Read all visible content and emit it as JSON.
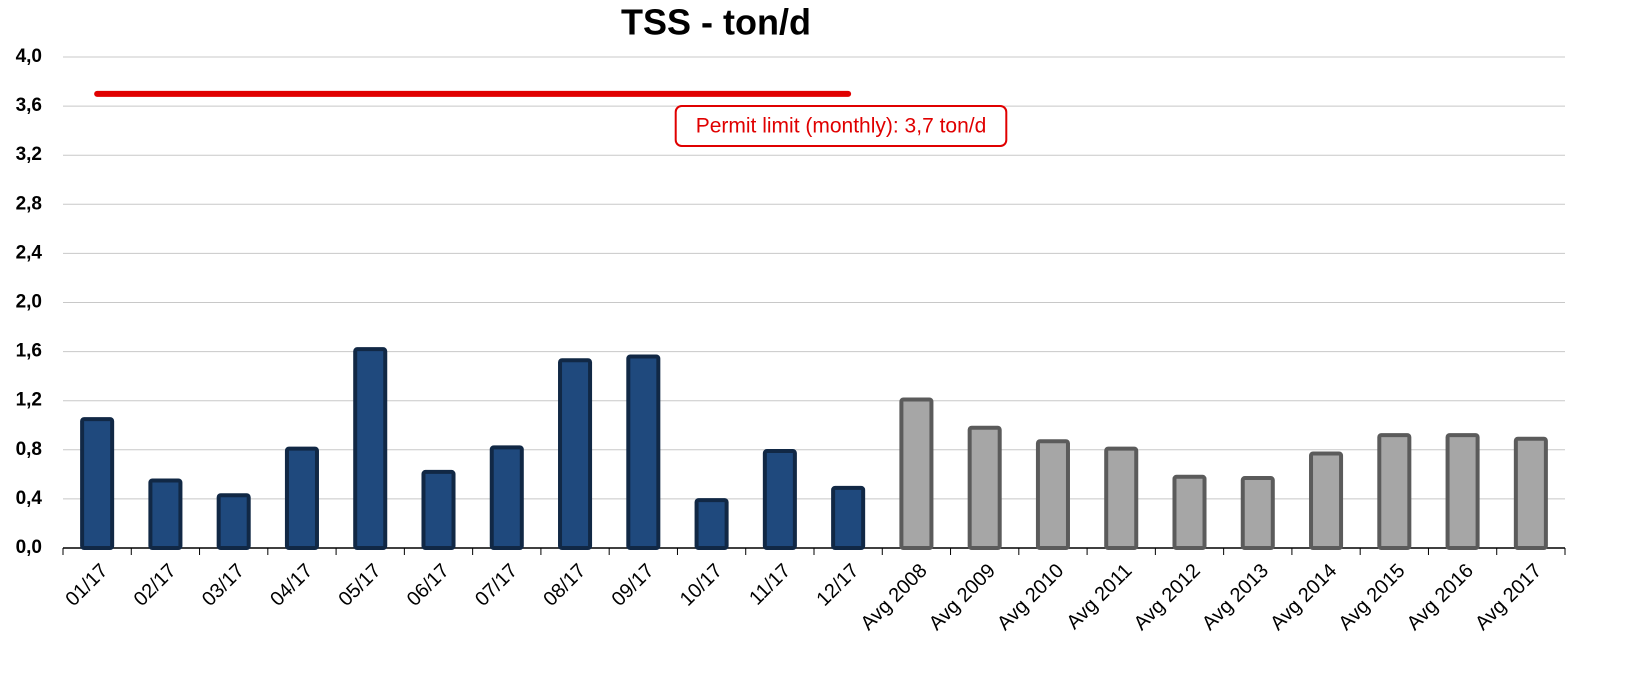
{
  "chart_data": {
    "type": "bar",
    "title": "TSS - ton/d",
    "categories": [
      "01/17",
      "02/17",
      "03/17",
      "04/17",
      "05/17",
      "06/17",
      "07/17",
      "08/17",
      "09/17",
      "10/17",
      "11/17",
      "12/17",
      "Avg 2008",
      "Avg 2009",
      "Avg 2010",
      "Avg 2011",
      "Avg 2012",
      "Avg 2013",
      "Avg 2014",
      "Avg 2015",
      "Avg 2016",
      "Avg 2017"
    ],
    "values": [
      1.05,
      0.55,
      0.43,
      0.81,
      1.62,
      0.62,
      0.82,
      1.53,
      1.56,
      0.39,
      0.79,
      0.49,
      1.21,
      0.98,
      0.87,
      0.81,
      0.58,
      0.57,
      0.77,
      0.92,
      0.92,
      0.89
    ],
    "colors": [
      "#1f497d",
      "#1f497d",
      "#1f497d",
      "#1f497d",
      "#1f497d",
      "#1f497d",
      "#1f497d",
      "#1f497d",
      "#1f497d",
      "#1f497d",
      "#1f497d",
      "#1f497d",
      "#a6a6a6",
      "#a6a6a6",
      "#a6a6a6",
      "#a6a6a6",
      "#a6a6a6",
      "#a6a6a6",
      "#a6a6a6",
      "#a6a6a6",
      "#a6a6a6",
      "#a6a6a6"
    ],
    "ylim": [
      0,
      4
    ],
    "yticks": [
      {
        "value": 0,
        "label": "0,0"
      },
      {
        "value": 0.4,
        "label": "0,4"
      },
      {
        "value": 0.8,
        "label": "0,8"
      },
      {
        "value": 1.2,
        "label": "1,2"
      },
      {
        "value": 1.6,
        "label": "1,6"
      },
      {
        "value": 2,
        "label": "2,0"
      },
      {
        "value": 2.4,
        "label": "2,4"
      },
      {
        "value": 2.8,
        "label": "2,8"
      },
      {
        "value": 3.2,
        "label": "3,2"
      },
      {
        "value": 3.6,
        "label": "3,6"
      },
      {
        "value": 4,
        "label": "4,0"
      }
    ],
    "grid": true,
    "limit": {
      "value": 3.7,
      "label": "Permit limit (monthly): 3,7 ton/d",
      "color": "#e00000"
    }
  }
}
